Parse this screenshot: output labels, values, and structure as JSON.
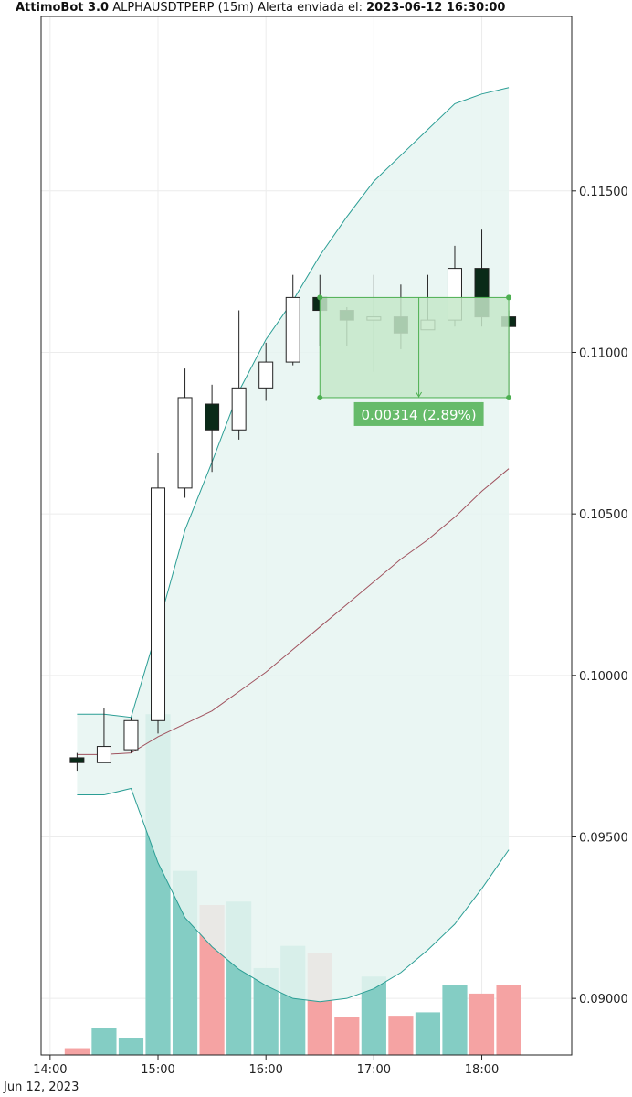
{
  "title": {
    "bot": "AttimoBot 3.0",
    "symbol_line": "ALPHAUSDTPERP (15m) Alerta enviada el:",
    "timestamp": "2023-06-12 16:30:00"
  },
  "chart_data": {
    "type": "candlestick",
    "x_date_label": "Jun 12, 2023",
    "x_ticks": [
      "14:00",
      "15:00",
      "16:00",
      "17:00",
      "18:00"
    ],
    "x_range": [
      "13:55",
      "18:50"
    ],
    "y_ticks": [
      "0.09000",
      "0.09500",
      "0.10000",
      "0.10500",
      "0.11000",
      "0.11500"
    ],
    "ylim": [
      0.08825,
      0.1204
    ],
    "candles": [
      {
        "t": "14:15",
        "open": 0.09745,
        "high": 0.0976,
        "low": 0.09705,
        "close": 0.0973
      },
      {
        "t": "14:30",
        "open": 0.0973,
        "high": 0.099,
        "low": 0.0973,
        "close": 0.0978
      },
      {
        "t": "14:45",
        "open": 0.0977,
        "high": 0.0987,
        "low": 0.0976,
        "close": 0.0986
      },
      {
        "t": "15:00",
        "open": 0.0986,
        "high": 0.1069,
        "low": 0.0982,
        "close": 0.1058
      },
      {
        "t": "15:15",
        "open": 0.1058,
        "high": 0.1095,
        "low": 0.1055,
        "close": 0.1086
      },
      {
        "t": "15:30",
        "open": 0.1084,
        "high": 0.109,
        "low": 0.1063,
        "close": 0.1076
      },
      {
        "t": "15:45",
        "open": 0.1076,
        "high": 0.1113,
        "low": 0.1073,
        "close": 0.1089
      },
      {
        "t": "16:00",
        "open": 0.1089,
        "high": 0.1103,
        "low": 0.1085,
        "close": 0.1097
      },
      {
        "t": "16:15",
        "open": 0.1097,
        "high": 0.1124,
        "low": 0.1096,
        "close": 0.1117
      },
      {
        "t": "16:30",
        "open": 0.1117,
        "high": 0.1124,
        "low": 0.1102,
        "close": 0.1113
      },
      {
        "t": "16:45",
        "open": 0.1113,
        "high": 0.1114,
        "low": 0.1102,
        "close": 0.111
      },
      {
        "t": "17:00",
        "open": 0.111,
        "high": 0.1124,
        "low": 0.1094,
        "close": 0.1111
      },
      {
        "t": "17:15",
        "open": 0.1111,
        "high": 0.1121,
        "low": 0.1101,
        "close": 0.1106
      },
      {
        "t": "17:30",
        "open": 0.1107,
        "high": 0.1124,
        "low": 0.1107,
        "close": 0.111
      },
      {
        "t": "17:45",
        "open": 0.111,
        "high": 0.1133,
        "low": 0.1108,
        "close": 0.1126
      },
      {
        "t": "18:00",
        "open": 0.1126,
        "high": 0.1138,
        "low": 0.1108,
        "close": 0.1111
      },
      {
        "t": "18:15",
        "open": 0.1111,
        "high": 0.1113,
        "low": 0.1086,
        "close": 0.1108
      }
    ],
    "bollinger": {
      "t": [
        "14:15",
        "14:30",
        "14:45",
        "15:00",
        "15:15",
        "15:30",
        "15:45",
        "16:00",
        "16:15",
        "16:30",
        "16:45",
        "17:00",
        "17:15",
        "17:30",
        "17:45",
        "18:00",
        "18:15"
      ],
      "upper": [
        0.0988,
        0.0988,
        0.0987,
        0.1015,
        0.1045,
        0.1066,
        0.1088,
        0.1104,
        0.1116,
        0.113,
        0.1142,
        0.1153,
        0.1161,
        0.1169,
        0.1177,
        0.118,
        0.1182
      ],
      "middle": [
        0.09755,
        0.09755,
        0.0976,
        0.0981,
        0.0985,
        0.0989,
        0.0995,
        0.1001,
        0.1008,
        0.1015,
        0.1022,
        0.1029,
        0.1036,
        0.1042,
        0.1049,
        0.1057,
        0.1064
      ],
      "lower": [
        0.0963,
        0.0963,
        0.0965,
        0.0942,
        0.0925,
        0.0916,
        0.0909,
        0.0904,
        0.09,
        0.0899,
        0.09,
        0.0903,
        0.0908,
        0.0915,
        0.0923,
        0.0934,
        0.0946
      ]
    },
    "volume": {
      "t": [
        "14:15",
        "14:30",
        "14:45",
        "15:00",
        "15:15",
        "15:30",
        "15:45",
        "16:00",
        "16:15",
        "16:30",
        "16:45",
        "17:00",
        "17:15",
        "17:30",
        "17:45",
        "18:00",
        "18:15"
      ],
      "rel": [
        0.02,
        0.08,
        0.05,
        1.0,
        0.54,
        0.44,
        0.45,
        0.255,
        0.32,
        0.3,
        0.11,
        0.23,
        0.115,
        0.125,
        0.205,
        0.18,
        0.205
      ],
      "side": [
        "down",
        "up",
        "up",
        "up",
        "up",
        "down",
        "up",
        "up",
        "up",
        "down",
        "down",
        "up",
        "down",
        "up",
        "up",
        "down",
        "down"
      ]
    },
    "measure": {
      "t_start": "16:30",
      "t_end": "18:15",
      "p_high": 0.1117,
      "p_low": 0.1086,
      "arrow_t": "17:25",
      "label": "0.00314 (2.89%)"
    },
    "colors": {
      "band_fill": "#e6f4f1",
      "band_line": "#2b9e95",
      "middle_line": "#a0525e",
      "vol_up": "#84cdc4",
      "vol_down": "#f5a3a3",
      "measure_fill": "#c6e7c9",
      "measure_line": "#4caf50",
      "label_bg": "#66bb6a",
      "candle_up_fill": "#ffffff",
      "candle_down_fill": "#0a2a18",
      "candle_edge": "#222222"
    }
  }
}
